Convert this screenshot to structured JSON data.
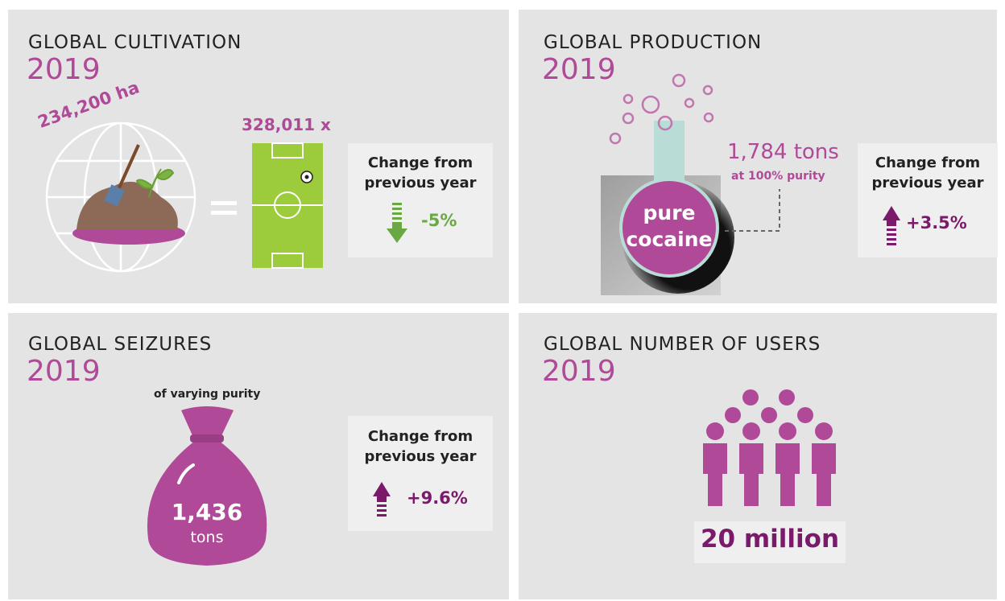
{
  "panels": [
    {
      "title": "GLOBAL CULTIVATION",
      "year": "2019",
      "area": "234,200 ha",
      "fields": "328,011 x",
      "change_label": "Change from previous year",
      "change": "-5%"
    },
    {
      "title": "GLOBAL PRODUCTION",
      "year": "2019",
      "flask_label": [
        "pure",
        "cocaine"
      ],
      "amount": "1,784 tons",
      "amount_note": "at 100% purity",
      "change_label": "Change from previous year",
      "change": "+3.5%"
    },
    {
      "title": "GLOBAL SEIZURES",
      "year": "2019",
      "note": "of varying purity",
      "amount": "1,436",
      "unit": "tons",
      "change_label": "Change from previous year",
      "change": "+9.6%"
    },
    {
      "title": "GLOBAL NUMBER OF USERS",
      "year": "2019",
      "users": "20 million"
    }
  ]
}
